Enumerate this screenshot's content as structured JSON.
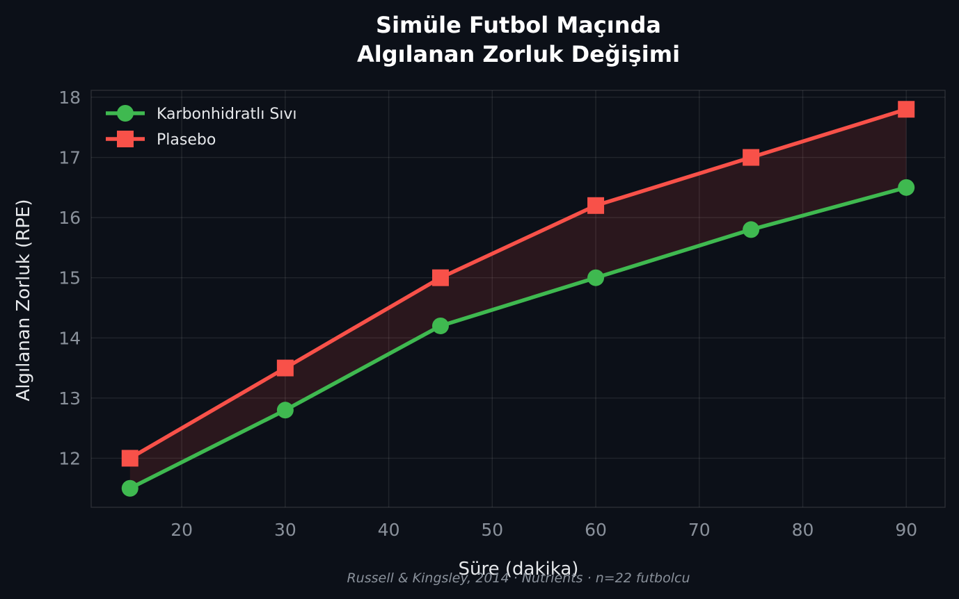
{
  "chart_data": {
    "type": "line",
    "title": [
      "Simüle Futbol Maçında",
      "Algılanan Zorluk Değişimi"
    ],
    "xlabel": "Süre (dakika)",
    "ylabel": "Algılanan Zorluk (RPE)",
    "x": [
      15,
      30,
      45,
      60,
      75,
      90
    ],
    "xlim": [
      11.25,
      93.75
    ],
    "ylim": [
      11.185,
      18.115
    ],
    "xticks": [
      20,
      30,
      40,
      50,
      60,
      70,
      80,
      90
    ],
    "yticks": [
      12,
      13,
      14,
      15,
      16,
      17,
      18
    ],
    "grid": true,
    "legend_position": "top-left",
    "fill_between": true,
    "series": [
      {
        "name": "Karbonhidratlı Sıvı",
        "values": [
          11.5,
          12.8,
          14.2,
          15.0,
          15.8,
          16.5
        ],
        "color": "#3fb950",
        "marker": "circle"
      },
      {
        "name": "Plasebo",
        "values": [
          12.0,
          13.5,
          15.0,
          16.2,
          17.0,
          17.8
        ],
        "color": "#f85149",
        "marker": "square"
      }
    ],
    "source": "Russell & Kingsley, 2014 · Nutrients · n=22 futbolcu"
  }
}
